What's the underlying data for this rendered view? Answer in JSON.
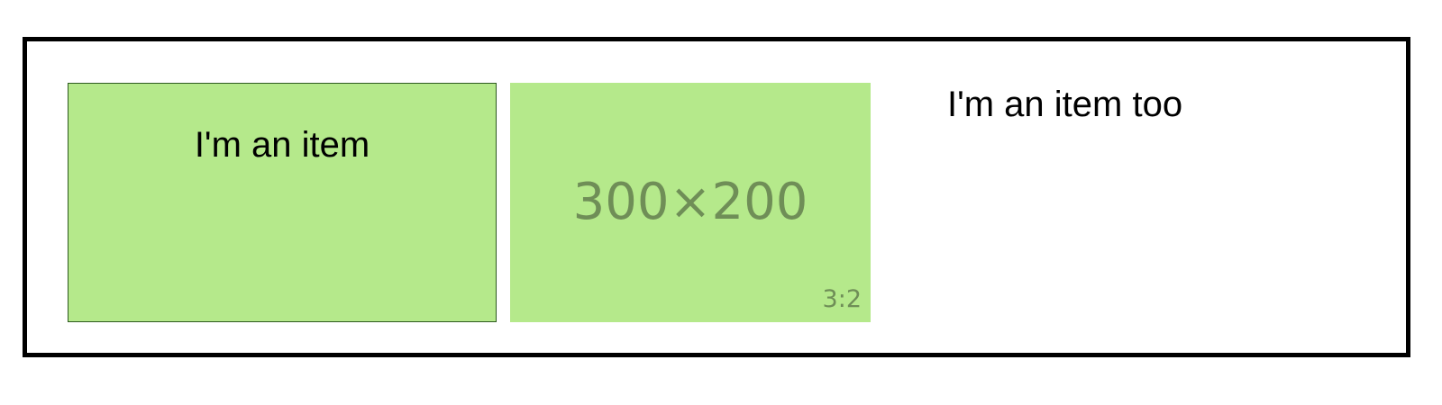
{
  "items": [
    {
      "label": "I'm an item"
    },
    {
      "label": "I'm an item too"
    }
  ],
  "placeholder": {
    "dimensions": "300×200",
    "ratio": "3:2"
  },
  "colors": {
    "item_fill": "#b5e98b",
    "placeholder_text": "#6f8e57",
    "container_border": "#000000"
  }
}
